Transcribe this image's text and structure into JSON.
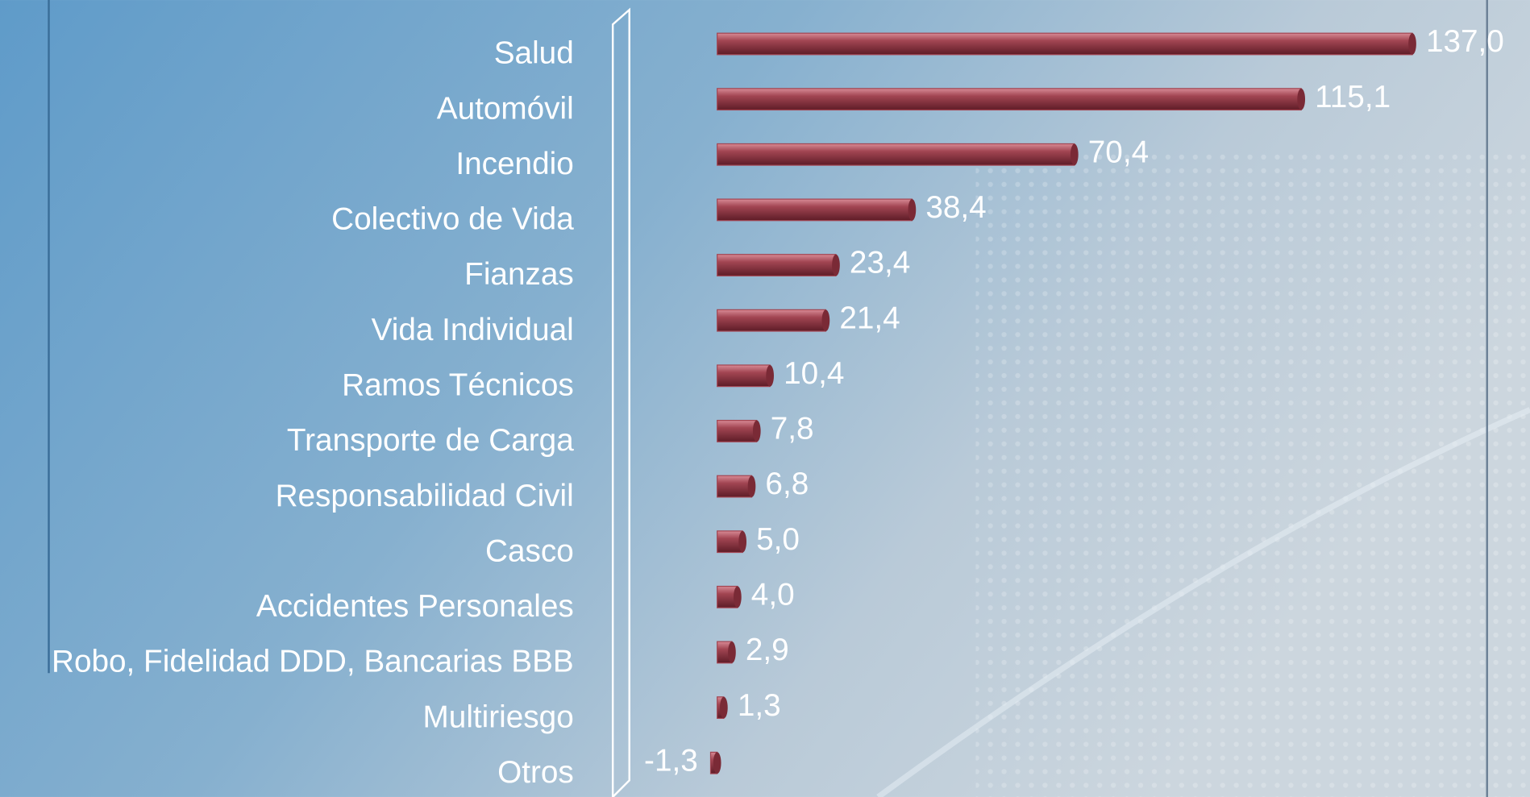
{
  "chart_data": {
    "type": "barh",
    "categories": [
      "Salud",
      "Automóvil",
      "Incendio",
      "Colectivo de Vida",
      "Fianzas",
      "Vida Individual",
      "Ramos Técnicos",
      "Transporte de Carga",
      "Responsabilidad Civil",
      "Casco",
      "Accidentes Personales",
      "Robo, Fidelidad DDD, Bancarias BBB",
      "Multiriesgo",
      "Otros"
    ],
    "values": [
      137.0,
      115.1,
      70.4,
      38.4,
      23.4,
      21.4,
      10.4,
      7.8,
      6.8,
      5.0,
      4.0,
      2.9,
      1.3,
      -1.3
    ],
    "value_labels": [
      "137,0",
      "115,1",
      "70,4",
      "38,4",
      "23,4",
      "21,4",
      "10,4",
      "7,8",
      "6,8",
      "5,0",
      "4,0",
      "2,9",
      "1,3",
      "-1,3"
    ],
    "color": "#a24552",
    "xlim": [
      -20,
      150
    ]
  }
}
